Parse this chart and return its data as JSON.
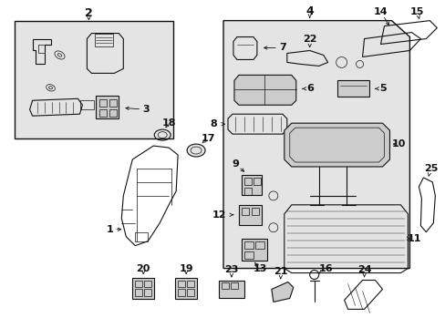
{
  "bg_color": "#ffffff",
  "line_color": "#111111",
  "gray_fill": "#cccccc",
  "light_gray": "#e4e4e4",
  "fig_width": 4.89,
  "fig_height": 3.6,
  "dpi": 100
}
